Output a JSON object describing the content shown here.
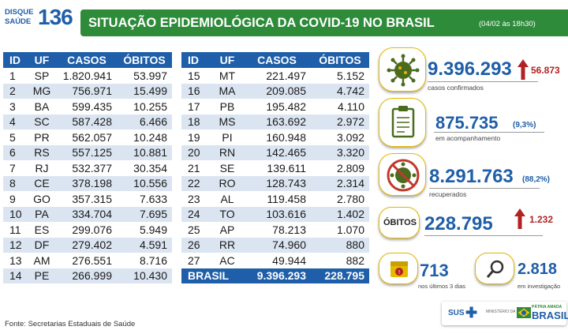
{
  "header": {
    "brand_line1": "DISQUE",
    "brand_line2": "SAÚDE",
    "brand_number": "136",
    "title": "SITUAÇÃO EPIDEMIOLÓGICA DA COVID-19 NO BRASIL",
    "date": "(04/02 às 18h30)",
    "bar_color": "#2e8b3a"
  },
  "table": {
    "headers": [
      "ID",
      "UF",
      "CASOS",
      "ÓBITOS"
    ],
    "left_rows": [
      [
        "1",
        "SP",
        "1.820.941",
        "53.997"
      ],
      [
        "2",
        "MG",
        "756.971",
        "15.499"
      ],
      [
        "3",
        "BA",
        "599.435",
        "10.255"
      ],
      [
        "4",
        "SC",
        "587.428",
        "6.466"
      ],
      [
        "5",
        "PR",
        "562.057",
        "10.248"
      ],
      [
        "6",
        "RS",
        "557.125",
        "10.881"
      ],
      [
        "7",
        "RJ",
        "532.377",
        "30.354"
      ],
      [
        "8",
        "CE",
        "378.198",
        "10.556"
      ],
      [
        "9",
        "GO",
        "357.315",
        "7.633"
      ],
      [
        "10",
        "PA",
        "334.704",
        "7.695"
      ],
      [
        "11",
        "ES",
        "299.076",
        "5.949"
      ],
      [
        "12",
        "DF",
        "279.402",
        "4.591"
      ],
      [
        "13",
        "AM",
        "276.551",
        "8.716"
      ],
      [
        "14",
        "PE",
        "266.999",
        "10.430"
      ]
    ],
    "right_rows": [
      [
        "15",
        "MT",
        "221.497",
        "5.152"
      ],
      [
        "16",
        "MA",
        "209.085",
        "4.742"
      ],
      [
        "17",
        "PB",
        "195.482",
        "4.110"
      ],
      [
        "18",
        "MS",
        "163.692",
        "2.972"
      ],
      [
        "19",
        "PI",
        "160.948",
        "3.092"
      ],
      [
        "20",
        "RN",
        "142.465",
        "3.320"
      ],
      [
        "21",
        "SE",
        "139.611",
        "2.809"
      ],
      [
        "22",
        "RO",
        "128.743",
        "2.314"
      ],
      [
        "23",
        "AL",
        "119.458",
        "2.780"
      ],
      [
        "24",
        "TO",
        "103.616",
        "1.402"
      ],
      [
        "25",
        "AP",
        "78.213",
        "1.070"
      ],
      [
        "26",
        "RR",
        "74.960",
        "880"
      ],
      [
        "27",
        "AC",
        "49.944",
        "882"
      ]
    ],
    "total": {
      "label": "BRASIL",
      "casos": "9.396.293",
      "obitos": "228.795"
    },
    "header_color": "#1f5ea8",
    "stripe_color": "#dbe5f1"
  },
  "source": "Fonte: Secretarias Estaduais de Saúde",
  "stats": {
    "confirmed": {
      "value": "9.396.293",
      "delta": "56.873",
      "label": "casos confirmados",
      "icon": "virus-icon"
    },
    "monitoring": {
      "value": "875.735",
      "pct": "(9,3%)",
      "label": "em acompanhamento",
      "icon": "clipboard-icon"
    },
    "recovered": {
      "value": "8.291.763",
      "pct": "(88,2%)",
      "label": "recuperados",
      "icon": "no-virus-icon"
    },
    "deaths": {
      "badge": "ÓBITOS",
      "value": "228.795",
      "delta": "1.232"
    },
    "recent": {
      "value": "713",
      "label": "nos últimos 3 dias",
      "icon": "calendar-icon"
    },
    "investigation": {
      "value": "2.818",
      "label": "em investigação",
      "icon": "magnifier-icon"
    }
  },
  "logos": {
    "sus": "SUS",
    "ministry": "MINISTÉRIO DA SAÚDE",
    "gov_line1": "PÁTRIA AMADA",
    "gov_line2": "BRASIL"
  },
  "colors": {
    "accent_blue": "#1f5ea8",
    "alert_red": "#b22222",
    "icon_gold": "#e6b800"
  }
}
